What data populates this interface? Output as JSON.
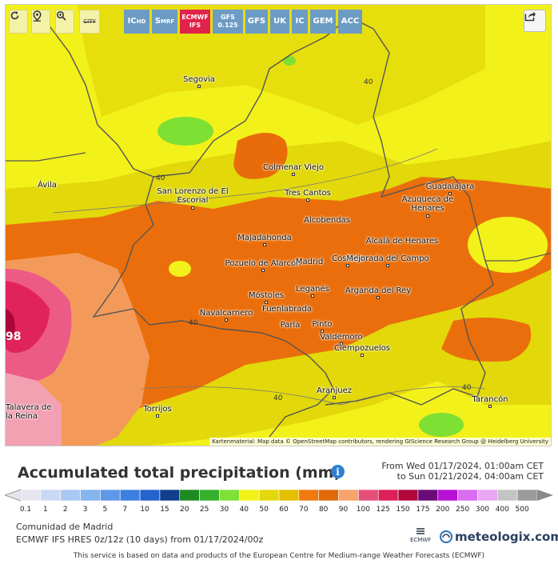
{
  "toolbar": {
    "reload_label": "",
    "locate_label": "",
    "zoom_label": "",
    "city_label": "CITY",
    "models": [
      {
        "label": "IC",
        "sub": "HD"
      },
      {
        "label": "S",
        "sub": "MRF"
      },
      {
        "label": "ECMWF",
        "sub": "IFS"
      },
      {
        "label": "GFS",
        "sub": "0.125"
      },
      {
        "label": "GFS",
        "sub": ""
      },
      {
        "label": "UK",
        "sub": ""
      },
      {
        "label": "IC",
        "sub": ""
      },
      {
        "label": "GEM",
        "sub": ""
      },
      {
        "label": "ACC",
        "sub": ""
      }
    ]
  },
  "map": {
    "cities": [
      "Segovia",
      "Ávila",
      "Colmenar Viejo",
      "Tres Cantos",
      "San Lorenzo de El Escorial",
      "Guadalajara",
      "Azuqueca de Henares",
      "Alcobendas",
      "Majadahonda",
      "Alcalá de Henares",
      "Pozuelo de Alarcón",
      "Madrid",
      "Coslada",
      "Mejorada del Campo",
      "Móstoles",
      "Leganés",
      "Arganda del Rey",
      "Fuenlabrada",
      "Navalcarnero",
      "Parla",
      "Pinto",
      "Valdemoro",
      "Ciempozuelos",
      "Aranjuez",
      "Torrijos",
      "Tarancón",
      "Talavera de la Reina"
    ],
    "isolines": [
      "40",
      "40",
      "40",
      "40",
      "40"
    ],
    "edge_value": "98",
    "attribution": "Kartenmaterial: Map data © OpenStreetMap contributors, rendering GIScience Research Group @ Heidelberg University"
  },
  "title": "Accumulated total precipitation (mm)",
  "range": {
    "from": "From Wed 01/17/2024, 01:00am CET",
    "to": "to Sun 01/21/2024, 04:00am CET"
  },
  "legend": {
    "ticks": [
      "0.1",
      "1",
      "2",
      "3",
      "5",
      "7",
      "10",
      "15",
      "20",
      "25",
      "30",
      "40",
      "50",
      "60",
      "70",
      "80",
      "90",
      "100",
      "125",
      "150",
      "175",
      "200",
      "250",
      "300",
      "400",
      "500"
    ],
    "colors": [
      "#e6e6f0",
      "#c8d8f5",
      "#a9c9f3",
      "#86b4ef",
      "#5f98e8",
      "#3d7fe0",
      "#2563cc",
      "#0f3e8d",
      "#1f8a22",
      "#36b02c",
      "#7fe038",
      "#f1f218",
      "#e4d80c",
      "#e4c000",
      "#f07a0f",
      "#e06a0a",
      "#f7a36a",
      "#e55079",
      "#dd1f5a",
      "#b0063a",
      "#6a0b78",
      "#b711d6",
      "#d96cf0",
      "#e9a7f4",
      "#c4c4c4",
      "#9b9b9b"
    ]
  },
  "region": "Comunidad de Madrid",
  "model_run": "ECMWF IFS HRES 0z/12z (10 days) from 01/17/2024/00z",
  "ecmwf_logo": "ECMWF",
  "brand": "meteologix.com",
  "footer": "This service is based on data and products of the European Centre for Medium-range Weather Forecasts (ECMWF)"
}
